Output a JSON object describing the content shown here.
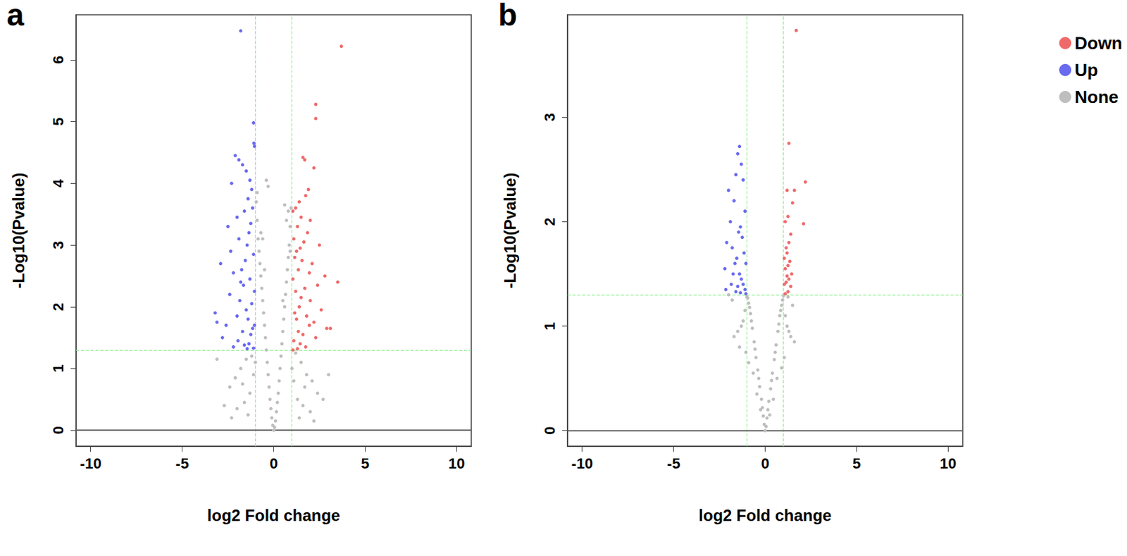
{
  "chart_data": [
    {
      "type": "scatter",
      "title": "a",
      "x_label": "log2 Fold change",
      "y_label": "-Log10(Pvalue)",
      "xlim": [
        -10.8,
        10.8
      ],
      "xticks": [
        -10,
        -5,
        0,
        5,
        10
      ],
      "ylim": [
        -0.26,
        6.73
      ],
      "yticks": [
        0,
        1,
        2,
        3,
        4,
        5,
        6
      ],
      "vlines": [
        {
          "value": -1,
          "line_style": "dashed"
        },
        {
          "value": 1,
          "line_style": "dashed"
        }
      ],
      "hlines": [
        {
          "value": 0,
          "line_style": "solid"
        },
        {
          "value": 1.301,
          "line_style": "dashed"
        }
      ],
      "series": [
        {
          "name": "Down",
          "color": "#EE6A6A",
          "marker": "circle",
          "x": [
            3.7,
            2.3,
            2.3,
            1.6,
            1.7,
            2.2,
            1.9,
            1.75,
            1.4,
            1.2,
            1.05,
            1.5,
            2.0,
            1.3,
            1.85,
            1.1,
            1.65,
            2.5,
            1.45,
            1.25,
            3.5,
            2.8,
            1.15,
            1.55,
            2.1,
            1.35,
            1.95,
            1.05,
            2.4,
            1.7,
            3.1,
            2.9,
            1.2,
            1.5,
            2.0,
            1.4,
            2.6,
            1.15,
            1.8,
            1.25,
            2.2,
            1.95,
            1.35,
            1.6,
            2.3,
            1.1,
            1.45,
            1.75,
            1.3,
            1.05
          ],
          "values": [
            6.22,
            5.28,
            5.05,
            4.42,
            4.38,
            4.25,
            3.9,
            3.8,
            3.7,
            3.6,
            3.55,
            3.45,
            3.4,
            3.3,
            3.2,
            3.1,
            3.05,
            3.0,
            2.95,
            2.9,
            2.4,
            2.5,
            2.8,
            2.75,
            2.7,
            2.6,
            2.55,
            2.45,
            2.35,
            2.3,
            1.65,
            1.65,
            2.25,
            2.15,
            2.1,
            2.0,
            1.95,
            1.9,
            1.85,
            1.8,
            1.75,
            1.7,
            1.6,
            1.55,
            1.5,
            1.45,
            1.4,
            1.35,
            1.32,
            1.3
          ]
        },
        {
          "name": "Up",
          "color": "#6A6AEE",
          "marker": "circle",
          "x": [
            -1.8,
            -1.1,
            -1.08,
            -1.05,
            -2.1,
            -1.9,
            -1.7,
            -1.5,
            -1.3,
            -1.2,
            -2.3,
            -1.4,
            -1.15,
            -1.6,
            -2.0,
            -1.25,
            -1.35,
            -1.9,
            -2.5,
            -1.45,
            -2.9,
            -1.1,
            -1.55,
            -1.75,
            -2.2,
            -1.3,
            -1.65,
            -1.05,
            -2.4,
            -1.85,
            -3.2,
            -3.1,
            -1.2,
            -1.5,
            -2.0,
            -1.4,
            -2.6,
            -1.15,
            -1.7,
            -1.25,
            -2.8,
            -1.95,
            -1.35,
            -1.6,
            -2.2,
            -1.1,
            -1.45,
            -2.35,
            -1.8,
            -1.05
          ],
          "values": [
            6.47,
            4.98,
            4.65,
            4.6,
            4.45,
            4.38,
            4.3,
            4.2,
            4.05,
            3.9,
            4.0,
            3.75,
            3.6,
            3.55,
            3.45,
            3.35,
            3.2,
            3.1,
            3.3,
            3.0,
            2.7,
            2.85,
            2.75,
            2.6,
            2.55,
            2.45,
            2.35,
            2.25,
            2.2,
            2.1,
            1.9,
            1.75,
            2.05,
            1.95,
            1.85,
            1.8,
            1.7,
            1.65,
            1.6,
            1.55,
            1.5,
            1.45,
            1.4,
            1.38,
            1.35,
            1.33,
            1.32,
            2.9,
            2.4,
            1.7
          ]
        },
        {
          "name": "None",
          "color": "#BEBEBE",
          "marker": "circle",
          "x": [
            0,
            0.05,
            -0.05,
            0.1,
            -0.1,
            0.15,
            -0.15,
            0.2,
            -0.2,
            0.25,
            -0.25,
            0.3,
            -0.3,
            0.35,
            -0.35,
            0.4,
            -0.4,
            0.45,
            -0.45,
            0.5,
            -0.5,
            0.55,
            -0.55,
            0.6,
            -0.6,
            0.65,
            -0.65,
            0.7,
            -0.7,
            0.75,
            -0.75,
            0.8,
            -0.8,
            0.85,
            -0.85,
            0.9,
            -0.9,
            0.95,
            -0.95,
            -0.4,
            -0.3,
            0.6,
            0.8,
            -0.9,
            -0.7,
            0.9,
            0.7,
            -0.6,
            0.5,
            -0.5,
            1.2,
            -1.2,
            1.5,
            -1.5,
            1.8,
            -1.8,
            2.1,
            -2.1,
            2.4,
            -2.4,
            1.1,
            -1.1,
            1.3,
            -1.3,
            1.6,
            -1.6,
            2.0,
            -2.0,
            2.7,
            -2.7,
            3.0,
            -3.1,
            1.4,
            -1.4,
            2.2,
            -2.3,
            1.7,
            -1.7,
            1.0,
            -1.0
          ],
          "values": [
            0,
            0.05,
            0.08,
            0.15,
            0.2,
            0.3,
            0.35,
            0.45,
            0.5,
            0.6,
            0.7,
            0.8,
            0.9,
            1.0,
            1.1,
            1.2,
            1.3,
            1.4,
            1.5,
            1.6,
            1.7,
            1.8,
            1.9,
            2.0,
            2.1,
            2.2,
            2.3,
            2.4,
            2.5,
            2.6,
            2.7,
            2.8,
            2.9,
            3.0,
            3.1,
            3.3,
            3.4,
            3.6,
            3.7,
            4.05,
            3.95,
            3.65,
            3.55,
            3.85,
            3.2,
            2.9,
            3.4,
            3.1,
            2.1,
            2.6,
            1.25,
            1.2,
            1.1,
            1.15,
            0.9,
            1.0,
            0.8,
            0.85,
            0.6,
            0.7,
            0.8,
            0.9,
            0.5,
            0.6,
            0.4,
            0.45,
            0.3,
            0.35,
            0.5,
            0.4,
            0.9,
            1.15,
            0.2,
            0.25,
            0.15,
            0.2,
            0.7,
            0.75,
            1.0,
            1.1
          ]
        }
      ]
    },
    {
      "type": "scatter",
      "title": "b",
      "x_label": "log2 Fold change",
      "y_label": "-Log10(Pvalue)",
      "xlim": [
        -10.8,
        10.8
      ],
      "xticks": [
        -10,
        -5,
        0,
        5,
        10
      ],
      "ylim": [
        -0.15,
        3.98
      ],
      "yticks": [
        0,
        1,
        2,
        3
      ],
      "legend": "top right",
      "vlines": [
        {
          "value": -1,
          "line_style": "dashed"
        },
        {
          "value": 1,
          "line_style": "dashed"
        }
      ],
      "hlines": [
        {
          "value": 0,
          "line_style": "solid"
        },
        {
          "value": 1.301,
          "line_style": "dashed"
        }
      ],
      "series": [
        {
          "name": "Down",
          "color": "#EE6A6A",
          "marker": "circle",
          "x": [
            1.7,
            1.3,
            2.2,
            1.6,
            1.2,
            1.5,
            2.1,
            1.25,
            1.1,
            1.4,
            1.3,
            1.15,
            1.2,
            1.05,
            1.35,
            1.25,
            1.1,
            1.45,
            1.2,
            1.3,
            1.15,
            1.05,
            1.4,
            1.25,
            1.1
          ],
          "values": [
            3.83,
            2.75,
            2.38,
            2.3,
            2.3,
            2.18,
            1.98,
            2.05,
            2.0,
            1.88,
            1.8,
            1.75,
            1.7,
            1.65,
            1.62,
            1.58,
            1.55,
            1.5,
            1.48,
            1.45,
            1.42,
            1.4,
            1.38,
            1.33,
            1.31
          ]
        },
        {
          "name": "Up",
          "color": "#6A6AEE",
          "marker": "circle",
          "x": [
            -1.4,
            -1.5,
            -1.3,
            -1.6,
            -1.2,
            -2.0,
            -1.7,
            -1.1,
            -1.9,
            -1.35,
            -1.45,
            -2.1,
            -1.25,
            -1.8,
            -1.15,
            -1.55,
            -1.05,
            -2.2,
            -1.65,
            -1.4,
            -1.3,
            -1.75,
            -1.2,
            -1.5,
            -1.1,
            -1.85,
            -1.6,
            -1.35,
            -1.05,
            -2.15
          ],
          "values": [
            2.72,
            2.65,
            2.55,
            2.45,
            2.4,
            2.3,
            2.2,
            2.1,
            2.0,
            1.95,
            1.9,
            1.8,
            1.85,
            1.75,
            1.7,
            1.65,
            1.6,
            1.55,
            1.6,
            1.5,
            1.45,
            1.5,
            1.4,
            1.38,
            1.35,
            1.4,
            1.33,
            1.32,
            1.31,
            1.35
          ]
        },
        {
          "name": "None",
          "color": "#BEBEBE",
          "marker": "circle",
          "x": [
            0,
            0.05,
            -0.05,
            0.1,
            -0.1,
            0.15,
            -0.15,
            0.2,
            -0.2,
            0.3,
            -0.3,
            0.35,
            -0.35,
            0.4,
            -0.4,
            0.5,
            -0.5,
            0.55,
            -0.55,
            0.6,
            -0.6,
            0.7,
            -0.7,
            0.75,
            -0.75,
            0.8,
            -0.8,
            0.85,
            -0.85,
            0.9,
            -0.9,
            0.95,
            -0.95,
            1.0,
            -1.0,
            1.1,
            -1.1,
            1.2,
            -1.2,
            1.3,
            -1.3,
            1.4,
            -1.5,
            1.6,
            -1.7,
            -2.0,
            -1.8,
            1.5,
            -1.4,
            1.25,
            0.45,
            -0.45,
            0.65,
            -0.65,
            0.25,
            -0.25,
            1.05,
            -1.05,
            0.9,
            -0.9
          ],
          "values": [
            0,
            0.04,
            0.06,
            0.12,
            0.14,
            0.2,
            0.22,
            0.28,
            0.3,
            0.4,
            0.42,
            0.48,
            0.5,
            0.55,
            0.58,
            0.68,
            0.7,
            0.75,
            0.78,
            0.82,
            0.85,
            0.95,
            0.98,
            1.02,
            1.05,
            1.1,
            1.12,
            1.15,
            1.18,
            1.2,
            1.22,
            1.25,
            1.27,
            1.29,
            1.28,
            1.1,
            1.15,
            1.0,
            1.05,
            0.95,
            1.0,
            0.9,
            0.95,
            0.85,
            0.9,
            1.3,
            1.25,
            1.2,
            0.8,
            1.28,
            0.3,
            0.35,
            0.5,
            0.55,
            0.15,
            0.2,
            0.7,
            0.75,
            0.6,
            0.65
          ]
        }
      ]
    }
  ]
}
